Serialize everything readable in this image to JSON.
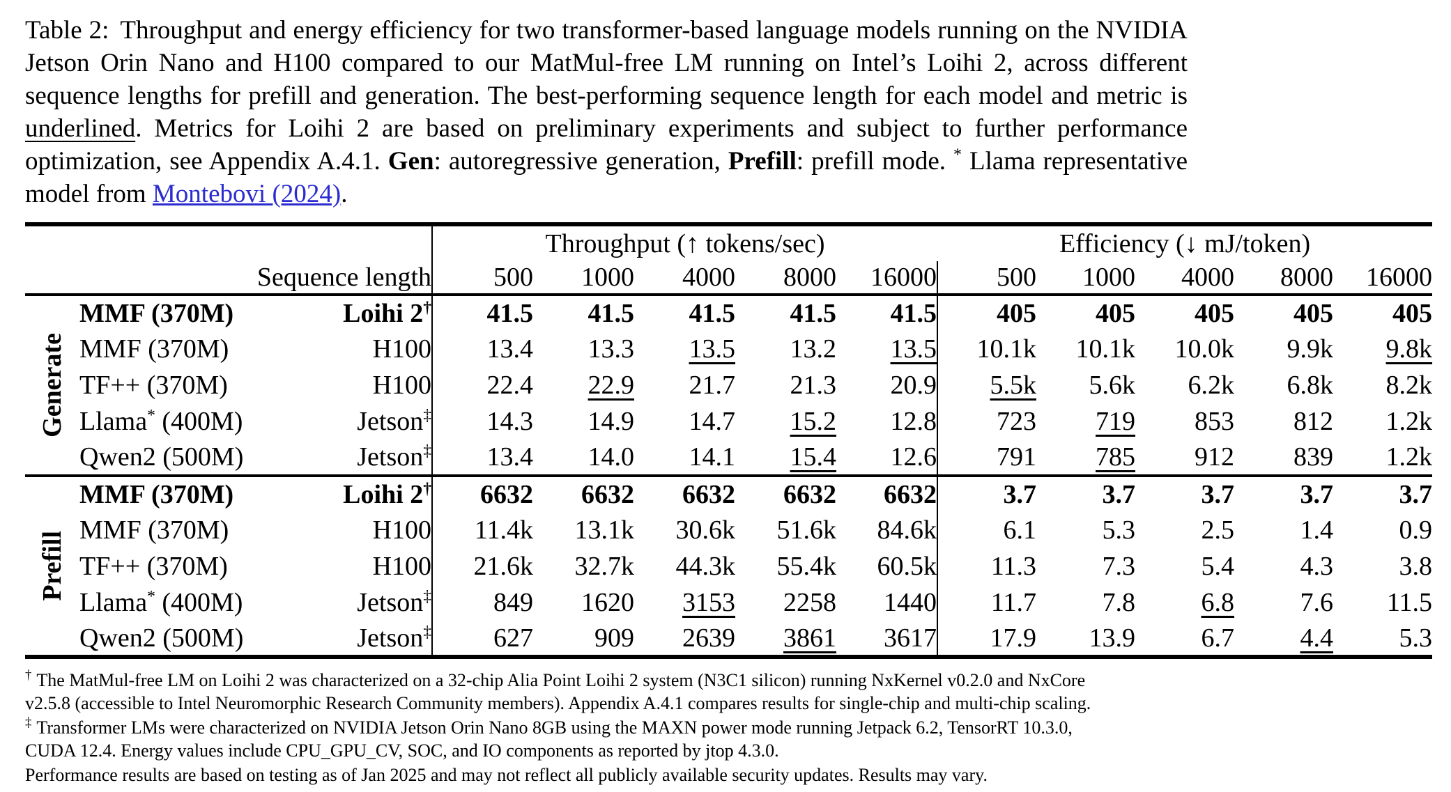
{
  "colors": {
    "link": "#2b2bd0",
    "text": "#000000",
    "rule": "#000000"
  },
  "caption": {
    "segments": [
      {
        "text": "Table 2:",
        "style": "gap"
      },
      {
        "text": "Throughput and energy efficiency for two transformer-based language models running on the NVIDIA Jetson Orin Nano and H100 compared to our MatMul-free LM running on Intel’s Loihi 2, across different sequence lengths for prefill and generation. The best-performing sequence length for each model and metric is ",
        "style": ""
      },
      {
        "text": "underlined",
        "style": "ul"
      },
      {
        "text": ". Metrics for Loihi 2 are based on preliminary experiments and subject to further performance optimization, see Appendix A.4.1. ",
        "style": ""
      },
      {
        "text": "Gen",
        "style": "bold"
      },
      {
        "text": ": autoregressive generation, ",
        "style": ""
      },
      {
        "text": "Prefill",
        "style": "bold"
      },
      {
        "text": ": prefill mode. ",
        "style": ""
      },
      {
        "text": "*",
        "style": "sup"
      },
      {
        "text": " Llama representative model from ",
        "style": ""
      },
      {
        "text": "Montebovi (2024)",
        "style": "link"
      },
      {
        "text": ".",
        "style": ""
      }
    ]
  },
  "table": {
    "sequence_label": "Sequence length",
    "throughput_title": "Throughput (↑ tokens/sec)",
    "efficiency_title": "Efficiency (↓ mJ/token)",
    "seq_lengths": [
      "500",
      "1000",
      "4000",
      "8000",
      "16000"
    ],
    "groups": [
      {
        "label": "Generate",
        "rows": [
          {
            "model_pre": "MMF (370M)",
            "model_sup": "",
            "model_post": "",
            "hw": "Loihi 2",
            "hw_sup": "†",
            "bold": true,
            "tp": [
              {
                "v": "41.5"
              },
              {
                "v": "41.5"
              },
              {
                "v": "41.5"
              },
              {
                "v": "41.5"
              },
              {
                "v": "41.5"
              }
            ],
            "eff": [
              {
                "v": "405"
              },
              {
                "v": "405"
              },
              {
                "v": "405"
              },
              {
                "v": "405"
              },
              {
                "v": "405"
              }
            ]
          },
          {
            "model_pre": "MMF (370M)",
            "model_sup": "",
            "model_post": "",
            "hw": "H100",
            "hw_sup": "",
            "bold": false,
            "tp": [
              {
                "v": "13.4"
              },
              {
                "v": "13.3"
              },
              {
                "v": "13.5",
                "u": true
              },
              {
                "v": "13.2"
              },
              {
                "v": "13.5",
                "u": true
              }
            ],
            "eff": [
              {
                "v": "10.1k"
              },
              {
                "v": "10.1k"
              },
              {
                "v": "10.0k"
              },
              {
                "v": "9.9k"
              },
              {
                "v": "9.8k",
                "u": true
              }
            ]
          },
          {
            "model_pre": "TF++ (370M)",
            "model_sup": "",
            "model_post": "",
            "hw": "H100",
            "hw_sup": "",
            "bold": false,
            "tp": [
              {
                "v": "22.4"
              },
              {
                "v": "22.9",
                "u": true
              },
              {
                "v": "21.7"
              },
              {
                "v": "21.3"
              },
              {
                "v": "20.9"
              }
            ],
            "eff": [
              {
                "v": "5.5k",
                "u": true
              },
              {
                "v": "5.6k"
              },
              {
                "v": "6.2k"
              },
              {
                "v": "6.8k"
              },
              {
                "v": "8.2k"
              }
            ]
          },
          {
            "model_pre": "Llama",
            "model_sup": "*",
            "model_post": " (400M)",
            "hw": "Jetson",
            "hw_sup": "‡",
            "bold": false,
            "tp": [
              {
                "v": "14.3"
              },
              {
                "v": "14.9"
              },
              {
                "v": "14.7"
              },
              {
                "v": "15.2",
                "u": true
              },
              {
                "v": "12.8"
              }
            ],
            "eff": [
              {
                "v": "723"
              },
              {
                "v": "719",
                "u": true
              },
              {
                "v": "853"
              },
              {
                "v": "812"
              },
              {
                "v": "1.2k"
              }
            ]
          },
          {
            "model_pre": "Qwen2 (500M)",
            "model_sup": "",
            "model_post": "",
            "hw": "Jetson",
            "hw_sup": "‡",
            "bold": false,
            "tp": [
              {
                "v": "13.4"
              },
              {
                "v": "14.0"
              },
              {
                "v": "14.1"
              },
              {
                "v": "15.4",
                "u": true
              },
              {
                "v": "12.6"
              }
            ],
            "eff": [
              {
                "v": "791"
              },
              {
                "v": "785",
                "u": true
              },
              {
                "v": "912"
              },
              {
                "v": "839"
              },
              {
                "v": "1.2k"
              }
            ]
          }
        ]
      },
      {
        "label": "Prefill",
        "rows": [
          {
            "model_pre": "MMF (370M)",
            "model_sup": "",
            "model_post": "",
            "hw": "Loihi 2",
            "hw_sup": "†",
            "bold": true,
            "tp": [
              {
                "v": "6632"
              },
              {
                "v": "6632"
              },
              {
                "v": "6632"
              },
              {
                "v": "6632"
              },
              {
                "v": "6632"
              }
            ],
            "eff": [
              {
                "v": "3.7"
              },
              {
                "v": "3.7"
              },
              {
                "v": "3.7"
              },
              {
                "v": "3.7"
              },
              {
                "v": "3.7"
              }
            ]
          },
          {
            "model_pre": "MMF (370M)",
            "model_sup": "",
            "model_post": "",
            "hw": "H100",
            "hw_sup": "",
            "bold": false,
            "tp": [
              {
                "v": "11.4k"
              },
              {
                "v": "13.1k"
              },
              {
                "v": "30.6k"
              },
              {
                "v": "51.6k"
              },
              {
                "v": "84.6k"
              }
            ],
            "eff": [
              {
                "v": "6.1"
              },
              {
                "v": "5.3"
              },
              {
                "v": "2.5"
              },
              {
                "v": "1.4"
              },
              {
                "v": "0.9"
              }
            ]
          },
          {
            "model_pre": "TF++ (370M)",
            "model_sup": "",
            "model_post": "",
            "hw": "H100",
            "hw_sup": "",
            "bold": false,
            "tp": [
              {
                "v": "21.6k"
              },
              {
                "v": "32.7k"
              },
              {
                "v": "44.3k"
              },
              {
                "v": "55.4k"
              },
              {
                "v": "60.5k"
              }
            ],
            "eff": [
              {
                "v": "11.3"
              },
              {
                "v": "7.3"
              },
              {
                "v": "5.4"
              },
              {
                "v": "4.3"
              },
              {
                "v": "3.8"
              }
            ]
          },
          {
            "model_pre": "Llama",
            "model_sup": "*",
            "model_post": " (400M)",
            "hw": "Jetson",
            "hw_sup": "‡",
            "bold": false,
            "tp": [
              {
                "v": "849"
              },
              {
                "v": "1620"
              },
              {
                "v": "3153",
                "u": true
              },
              {
                "v": "2258"
              },
              {
                "v": "1440"
              }
            ],
            "eff": [
              {
                "v": "11.7"
              },
              {
                "v": "7.8"
              },
              {
                "v": "6.8",
                "u": true
              },
              {
                "v": "7.6"
              },
              {
                "v": "11.5"
              }
            ]
          },
          {
            "model_pre": "Qwen2 (500M)",
            "model_sup": "",
            "model_post": "",
            "hw": "Jetson",
            "hw_sup": "‡",
            "bold": false,
            "tp": [
              {
                "v": "627"
              },
              {
                "v": "909"
              },
              {
                "v": "2639"
              },
              {
                "v": "3861",
                "u": true
              },
              {
                "v": "3617"
              }
            ],
            "eff": [
              {
                "v": "17.9"
              },
              {
                "v": "13.9"
              },
              {
                "v": "6.7"
              },
              {
                "v": "4.4",
                "u": true
              },
              {
                "v": "5.3"
              }
            ]
          }
        ]
      }
    ]
  },
  "footnotes": [
    {
      "marker": "†",
      "text": "The MatMul-free LM on Loihi 2 was characterized on a 32-chip Alia Point Loihi 2 system (N3C1 silicon) running NxKernel v0.2.0 and NxCore v2.5.8 (accessible to Intel Neuromorphic Research Community members). Appendix A.4.1 compares results for single-chip and multi-chip scaling."
    },
    {
      "marker": "‡",
      "text": "Transformer LMs were characterized on NVIDIA Jetson Orin Nano 8GB using the MAXN power mode running Jetpack 6.2, TensorRT 10.3.0, CUDA 12.4. Energy values include CPU_GPU_CV, SOC, and IO components as reported by jtop 4.3.0."
    },
    {
      "marker": "",
      "text": "Performance results are based on testing as of Jan 2025 and may not reflect all publicly available security updates. Results may vary."
    }
  ]
}
